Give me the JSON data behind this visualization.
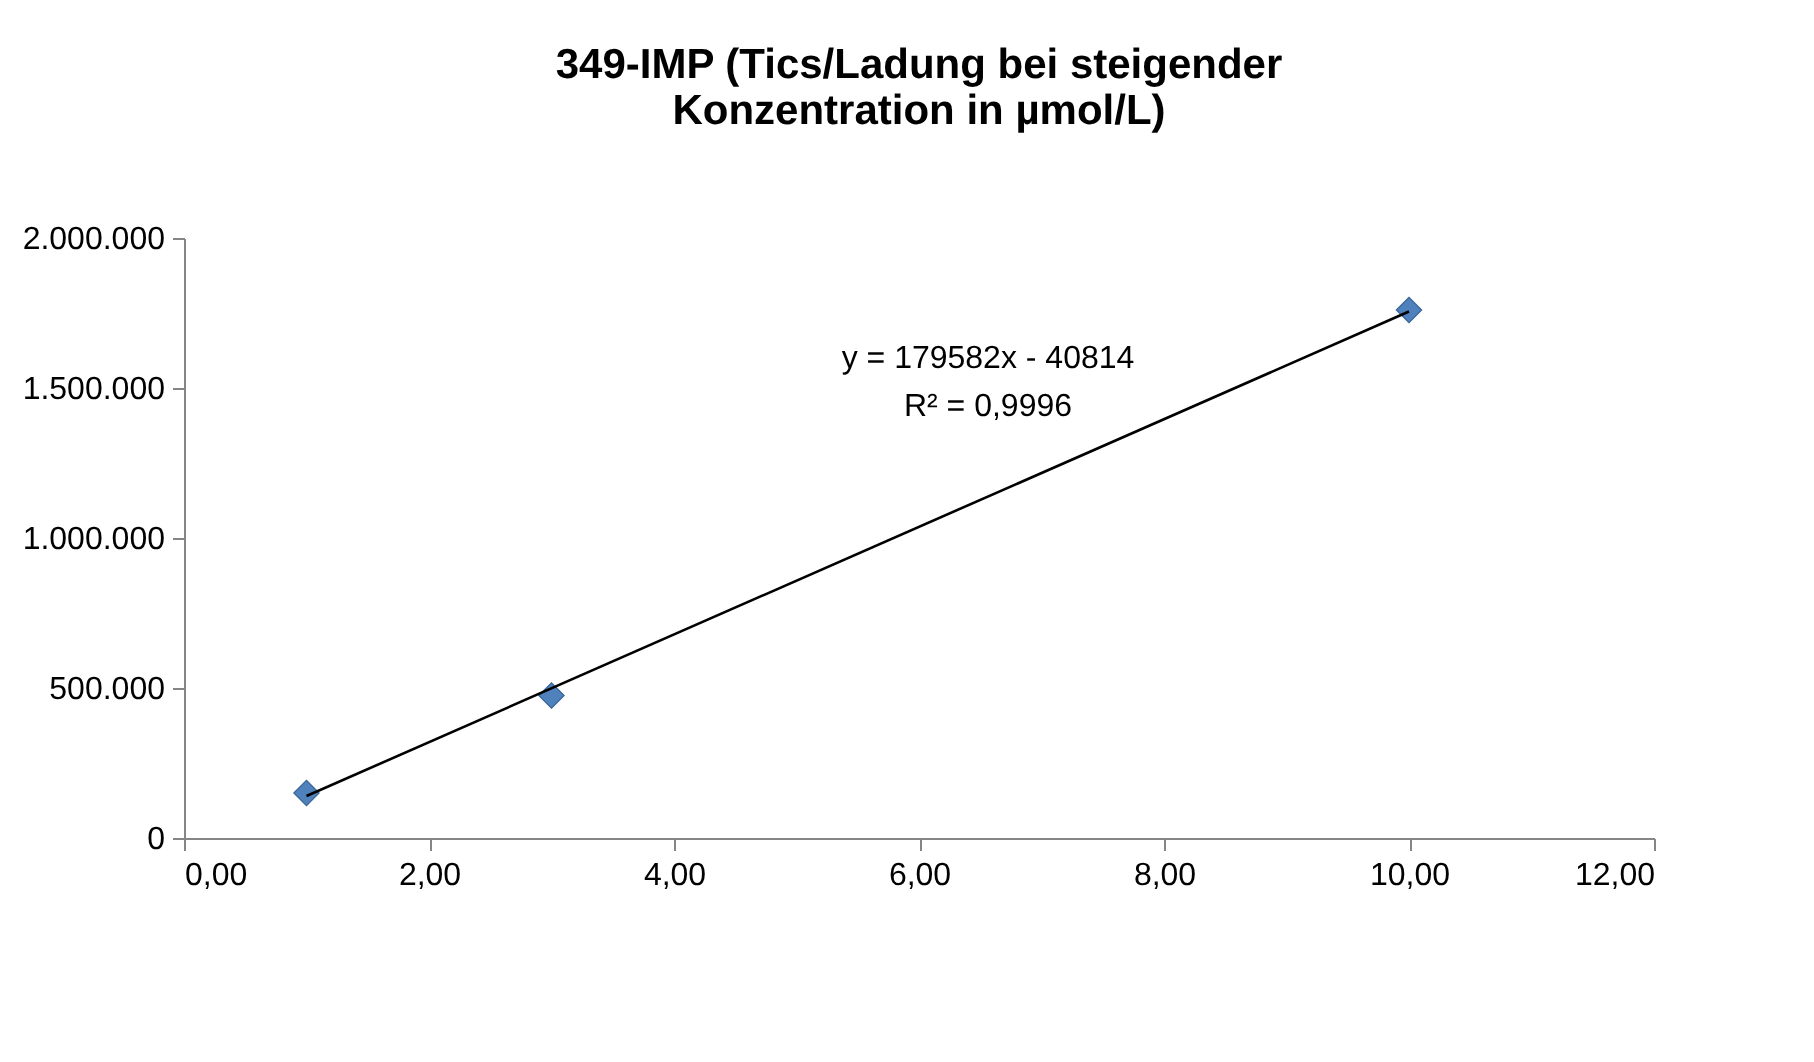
{
  "chart_data": {
    "type": "scatter",
    "title": "349-IMP (Tics/Ladung bei steigender Konzentration in µmol/L)",
    "series": [
      {
        "color": "#4f81bd",
        "marker": "diamond",
        "x": [
          1,
          3,
          10
        ],
        "values": [
          150000,
          475000,
          1760000
        ]
      },
      {
        "type": "line",
        "color": "#000000",
        "line_style": "solid",
        "x": [
          1,
          10
        ],
        "values": [
          140000,
          1755000
        ]
      }
    ],
    "annotations": [
      "y = 179582x - 40814",
      "R² = 0,9996"
    ],
    "xlim": [
      0,
      12
    ],
    "xticks": [
      {
        "value": 0,
        "label": "0,00"
      },
      {
        "value": 2,
        "label": "2,00"
      },
      {
        "value": 4,
        "label": "4,00"
      },
      {
        "value": 6,
        "label": "6,00"
      },
      {
        "value": 8,
        "label": "8,00"
      },
      {
        "value": 10,
        "label": "10,00"
      },
      {
        "value": 12,
        "label": "12,00"
      }
    ],
    "ylim": [
      0,
      2000000
    ],
    "yticks": [
      0,
      {
        "value": 500000,
        "label": "500.000"
      },
      {
        "value": 1000000,
        "label": "1.000.000"
      },
      {
        "value": 1500000,
        "label": "1.500.000"
      },
      {
        "value": 2000000,
        "label": "2.000.000"
      }
    ],
    "grid": false
  }
}
